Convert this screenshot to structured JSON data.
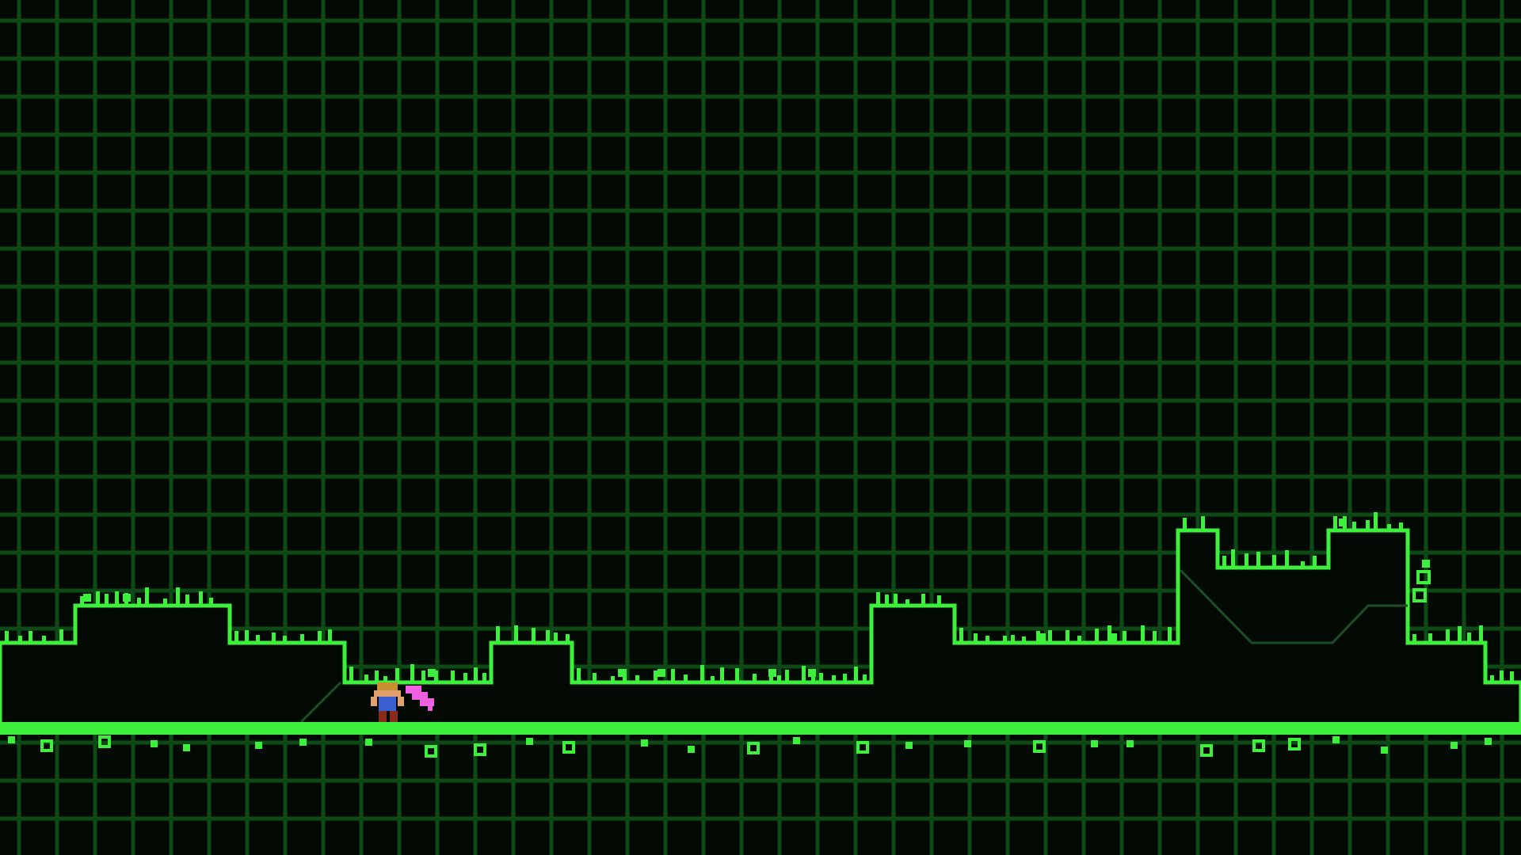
{
  "game": {
    "scene": "grassy-platformer-level",
    "palette": {
      "background": "#020a03",
      "grid": "#0e4a16",
      "grass": "#3cf03c",
      "terrain_fill": "#030a04",
      "ramp": "#1c4e2a",
      "player_skin": "#e0a070",
      "player_shirt": "#3a5fd0",
      "player_pants": "#8a2a1a",
      "player_scarf": "#f060e0"
    },
    "player": {
      "name": "player-character",
      "icon": "pixel-hero-with-pink-scarf",
      "facing": "left"
    }
  }
}
